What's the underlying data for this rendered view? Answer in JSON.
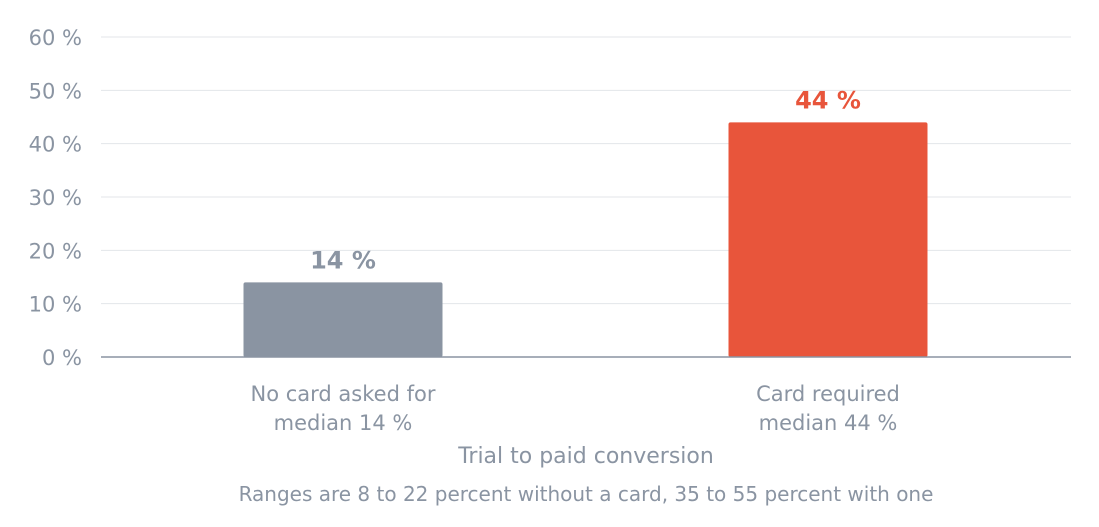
{
  "chart_data": {
    "type": "bar",
    "categories": [
      [
        "No card asked for",
        "median 14 %"
      ],
      [
        "Card required",
        "median 44 %"
      ]
    ],
    "values": [
      14,
      44
    ],
    "value_labels": [
      "14 %",
      "44 %"
    ],
    "bar_colors": [
      "#8a94a2",
      "#e8553b"
    ],
    "title": "",
    "xlabel": "Trial to paid conversion",
    "ylabel": "",
    "ylim": [
      0,
      60
    ],
    "yticks": [
      0,
      10,
      20,
      30,
      40,
      50,
      60
    ],
    "ytick_labels": [
      "0 %",
      "10 %",
      "20 %",
      "30 %",
      "40 %",
      "50 %",
      "60 %"
    ],
    "grid": true,
    "legend": "none",
    "footnote": "Ranges are 8 to 22 percent without a card, 35 to 55 percent with one"
  },
  "colors": {
    "grid": "#e3e6ea",
    "axis": "#8a94a2",
    "text": "#8a94a2"
  }
}
